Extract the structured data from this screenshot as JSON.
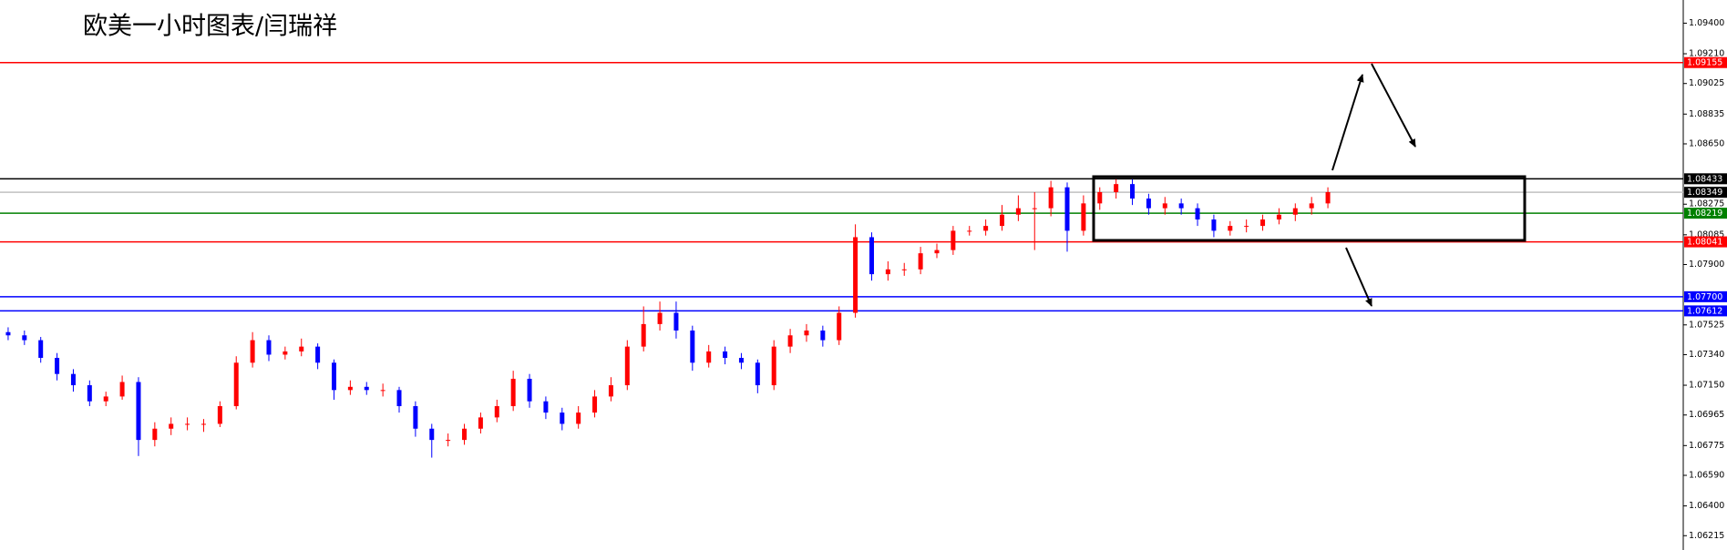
{
  "title": "欧美一小时图表/闫瑞祥",
  "chart_data": {
    "type": "candlestick",
    "up_color": "#ff0000",
    "down_color": "#0000ff",
    "ylim": [
      1.06126,
      1.09544
    ],
    "yticks": [
      {
        "value": 1.094,
        "label": "1.09400"
      },
      {
        "value": 1.0921,
        "label": "1.09210"
      },
      1.09025,
      1.08835,
      {
        "value": 1.0865,
        "label": "1.08650"
      },
      1.08275,
      1.08085,
      {
        "value": 1.079,
        "label": "1.07900"
      },
      1.07525,
      {
        "value": 1.0734,
        "label": "1.07340"
      },
      {
        "value": 1.0715,
        "label": "1.07150"
      },
      1.06965,
      1.06775,
      {
        "value": 1.0659,
        "label": "1.06590"
      },
      {
        "value": 1.064,
        "label": "1.06400"
      },
      1.06215
    ],
    "open": [
      1.0748,
      1.0746,
      1.0743,
      1.0732,
      1.0722,
      1.0715,
      1.0705,
      1.0708,
      1.0717,
      1.0681,
      1.0688,
      1.0691,
      1.0691,
      1.0691,
      1.0702,
      1.0729,
      1.0743,
      1.0734,
      1.0736,
      1.0739,
      1.0729,
      1.0712,
      1.0714,
      1.0712,
      1.0712,
      1.0702,
      1.0688,
      1.0681,
      1.0681,
      1.0688,
      1.0695,
      1.0702,
      1.0719,
      1.0705,
      1.0698,
      1.0691,
      1.0698,
      1.0708,
      1.0715,
      1.0739,
      1.0753,
      1.076,
      1.0749,
      1.0729,
      1.0736,
      1.0732,
      1.0729,
      1.0715,
      1.0739,
      1.0746,
      1.0749,
      1.0743,
      1.076,
      1.0807,
      1.0784,
      1.0787,
      1.0787,
      1.0797,
      1.0799,
      1.0811,
      1.0811,
      1.0814,
      1.0821,
      1.0825,
      1.0825,
      1.0838,
      1.0811,
      1.0828,
      1.0835,
      1.084,
      1.0831,
      1.0825,
      1.0828,
      1.0825,
      1.0818,
      1.0811,
      1.0814,
      1.0814,
      1.0818,
      1.0821,
      1.0825,
      1.0828
    ],
    "high": [
      1.0751,
      1.0749,
      1.0745,
      1.0735,
      1.0725,
      1.0718,
      1.0711,
      1.0721,
      1.072,
      1.0692,
      1.0695,
      1.0695,
      1.0694,
      1.0705,
      1.0733,
      1.0748,
      1.0746,
      1.0739,
      1.0744,
      1.0741,
      1.0731,
      1.0718,
      1.0717,
      1.0716,
      1.0714,
      1.0705,
      1.0691,
      1.0685,
      1.0691,
      1.0698,
      1.0706,
      1.0724,
      1.0722,
      1.0708,
      1.0701,
      1.0702,
      1.0712,
      1.072,
      1.0743,
      1.0764,
      1.0767,
      1.0767,
      1.0752,
      1.074,
      1.0739,
      1.0735,
      1.0731,
      1.0743,
      1.075,
      1.0753,
      1.0752,
      1.0764,
      1.0815,
      1.081,
      1.0792,
      1.0791,
      1.0801,
      1.0803,
      1.0814,
      1.0814,
      1.0818,
      1.0827,
      1.0833,
      1.0835,
      1.0842,
      1.0841,
      1.0833,
      1.0838,
      1.0843,
      1.0843,
      1.0834,
      1.0832,
      1.0831,
      1.0828,
      1.0821,
      1.0817,
      1.0818,
      1.0821,
      1.0825,
      1.0828,
      1.0832,
      1.0838
    ],
    "low": [
      1.0743,
      1.074,
      1.0729,
      1.0718,
      1.0711,
      1.0702,
      1.0702,
      1.0706,
      1.0671,
      1.0677,
      1.0684,
      1.0687,
      1.0686,
      1.0689,
      1.07,
      1.0726,
      1.073,
      1.0731,
      1.0733,
      1.0725,
      1.0706,
      1.0709,
      1.0709,
      1.0708,
      1.0698,
      1.0683,
      1.067,
      1.0677,
      1.0678,
      1.0685,
      1.0692,
      1.0699,
      1.0701,
      1.0694,
      1.0687,
      1.0688,
      1.0695,
      1.0705,
      1.0712,
      1.0736,
      1.0749,
      1.0744,
      1.0724,
      1.0726,
      1.0728,
      1.0725,
      1.071,
      1.0712,
      1.0735,
      1.0742,
      1.0739,
      1.074,
      1.0757,
      1.078,
      1.078,
      1.0783,
      1.0784,
      1.0794,
      1.0796,
      1.0808,
      1.0808,
      1.0811,
      1.0817,
      1.0799,
      1.082,
      1.0798,
      1.0808,
      1.0824,
      1.0831,
      1.0827,
      1.0821,
      1.0821,
      1.0821,
      1.0814,
      1.0807,
      1.0808,
      1.081,
      1.0811,
      1.0815,
      1.0817,
      1.0821,
      1.0825
    ],
    "close": [
      1.0746,
      1.0743,
      1.0732,
      1.0722,
      1.0715,
      1.0705,
      1.0708,
      1.0717,
      1.0681,
      1.0688,
      1.0691,
      1.0691,
      1.0691,
      1.0702,
      1.0729,
      1.0743,
      1.0734,
      1.0736,
      1.0739,
      1.0729,
      1.0712,
      1.0714,
      1.0712,
      1.0712,
      1.0702,
      1.0688,
      1.0681,
      1.0681,
      1.0688,
      1.0695,
      1.0702,
      1.0719,
      1.0705,
      1.0698,
      1.0691,
      1.0698,
      1.0708,
      1.0715,
      1.0739,
      1.0753,
      1.076,
      1.0749,
      1.0729,
      1.0736,
      1.0732,
      1.0729,
      1.0715,
      1.0739,
      1.0746,
      1.0749,
      1.0743,
      1.076,
      1.0807,
      1.0784,
      1.0787,
      1.0787,
      1.0797,
      1.0799,
      1.0811,
      1.0811,
      1.0814,
      1.0821,
      1.0825,
      1.0825,
      1.0838,
      1.0811,
      1.0828,
      1.0835,
      1.084,
      1.0831,
      1.0825,
      1.0828,
      1.0825,
      1.0818,
      1.0811,
      1.0814,
      1.0814,
      1.0818,
      1.0821,
      1.0825,
      1.0828,
      1.0835
    ],
    "levels": [
      {
        "value": 1.09155,
        "color": "#ff0000"
      },
      {
        "value": 1.08433,
        "color": "#000000"
      },
      {
        "value": 1.08349,
        "color": "#c0c0c0",
        "label_color": "#000000"
      },
      {
        "value": 1.08219,
        "color": "#008000"
      },
      {
        "value": 1.08041,
        "color": "#ff0000"
      },
      {
        "value": 1.077,
        "label": "1.07700",
        "color": "#0000ff"
      },
      {
        "value": 1.07612,
        "color": "#0000ff"
      }
    ]
  }
}
